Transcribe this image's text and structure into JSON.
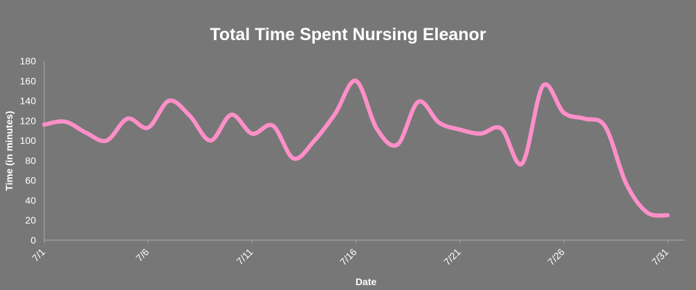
{
  "chart_data": {
    "type": "line",
    "title": "Total Time Spent Nursing Eleanor",
    "xlabel": "Date",
    "ylabel": "Time (in minutes)",
    "ylim": [
      0,
      180
    ],
    "yticks": [
      0,
      20,
      40,
      60,
      80,
      100,
      120,
      140,
      160,
      180
    ],
    "xtick_labels": [
      "7/1",
      "7/6",
      "7/11",
      "7/16",
      "7/21",
      "7/26",
      "7/31"
    ],
    "grid": false,
    "legend": "none",
    "line_color": "#ff8fc8",
    "background_color": "#777777",
    "x": [
      "7/1",
      "7/2",
      "7/3",
      "7/4",
      "7/5",
      "7/6",
      "7/7",
      "7/8",
      "7/9",
      "7/10",
      "7/11",
      "7/12",
      "7/13",
      "7/14",
      "7/15",
      "7/16",
      "7/17",
      "7/18",
      "7/19",
      "7/20",
      "7/21",
      "7/22",
      "7/23",
      "7/24",
      "7/25",
      "7/26",
      "7/27",
      "7/28",
      "7/29",
      "7/30",
      "7/31"
    ],
    "series": [
      {
        "values": [
          116,
          119,
          108,
          100,
          122,
          113,
          140,
          125,
          100,
          126,
          107,
          115,
          82,
          100,
          127,
          160,
          112,
          96,
          139,
          118,
          111,
          107,
          112,
          77,
          155,
          128,
          122,
          114,
          57,
          28,
          25
        ]
      }
    ]
  }
}
